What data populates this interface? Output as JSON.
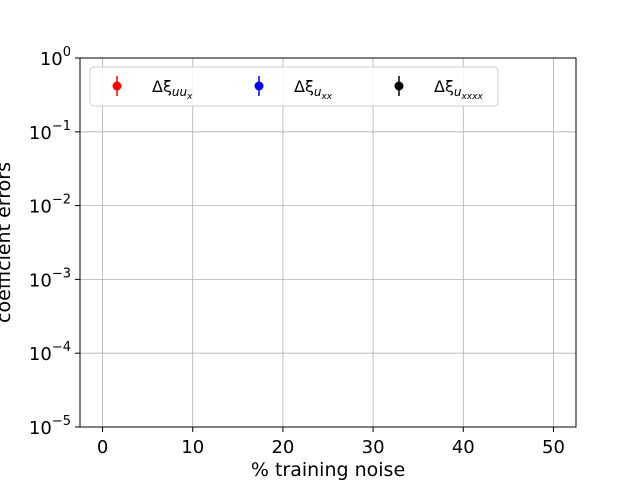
{
  "chart_data": {
    "type": "scatter",
    "xlabel": "% training noise",
    "ylabel": "coefficient errors",
    "x_ticks": [
      0,
      10,
      20,
      30,
      40,
      50
    ],
    "xlim": [
      -2.5,
      52.5
    ],
    "y_scale": "log",
    "ylim": [
      1e-05,
      1
    ],
    "y_ticks": [
      {
        "value": 1e-05,
        "base": "10",
        "exp": "−5"
      },
      {
        "value": 0.0001,
        "base": "10",
        "exp": "−4"
      },
      {
        "value": 0.001,
        "base": "10",
        "exp": "−3"
      },
      {
        "value": 0.01,
        "base": "10",
        "exp": "−2"
      },
      {
        "value": 0.1,
        "base": "10",
        "exp": "−1"
      },
      {
        "value": 1,
        "base": "10",
        "exp": "0"
      }
    ],
    "grid": true,
    "legend_position": "top-left",
    "series": [
      {
        "name": "Δξ",
        "sub": "uu",
        "subsub": "x",
        "color": "#ff0000",
        "points": []
      },
      {
        "name": "Δξ",
        "sub": "u",
        "subsub": "xx",
        "color": "#0000ff",
        "points": []
      },
      {
        "name": "Δξ",
        "sub": "u",
        "subsub": "xxxx",
        "color": "#000000",
        "points": []
      }
    ]
  }
}
